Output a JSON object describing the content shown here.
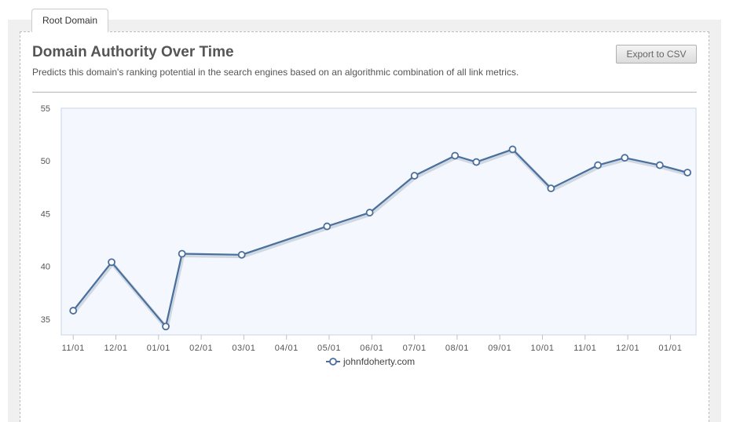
{
  "tab": {
    "label": "Root Domain"
  },
  "header": {
    "title": "Domain Authority Over Time",
    "subtitle": "Predicts this domain's ranking potential in the search engines based on an algorithmic combination of all link metrics.",
    "export_label": "Export to CSV"
  },
  "colors": {
    "line": "#4a6f9c",
    "plot_bg": "#f4f8fe",
    "plot_border": "#c8d6e6"
  },
  "chart_data": {
    "type": "line",
    "title": "",
    "xlabel": "",
    "ylabel": "",
    "ylim": [
      33.5,
      55
    ],
    "yticks": [
      35,
      40,
      45,
      50,
      55
    ],
    "x_tick_labels": [
      "11/01",
      "12/01",
      "01/01",
      "02/01",
      "03/01",
      "04/01",
      "05/01",
      "06/01",
      "07/01",
      "08/01",
      "09/01",
      "10/01",
      "11/01",
      "12/01",
      "01/01"
    ],
    "x_tick_positions": [
      0,
      1,
      2,
      3,
      4,
      5,
      6,
      7,
      8,
      9,
      10,
      11,
      12,
      13,
      14
    ],
    "xlim": [
      -0.28,
      14.6
    ],
    "grid": false,
    "legend_position": "bottom",
    "series": [
      {
        "name": "johnfdoherty.com",
        "x": [
          0.0,
          0.9,
          2.17,
          2.55,
          3.95,
          5.95,
          6.95,
          8.0,
          8.95,
          9.45,
          10.3,
          11.2,
          12.3,
          12.93,
          13.75,
          14.4
        ],
        "y": [
          35.8,
          40.4,
          34.3,
          41.2,
          41.1,
          43.8,
          45.1,
          48.6,
          50.5,
          49.9,
          51.1,
          47.4,
          49.6,
          50.3,
          49.6,
          48.9
        ]
      }
    ]
  }
}
